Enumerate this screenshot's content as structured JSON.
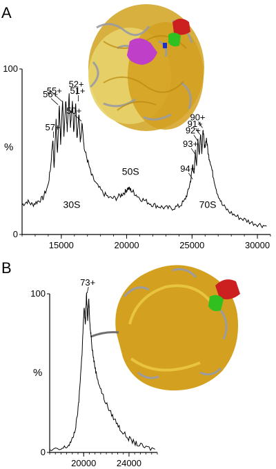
{
  "panel_labels": [
    "A",
    "B"
  ],
  "chart_data": [
    {
      "type": "line",
      "panel": "A",
      "ylabel": "%",
      "xlabel": "",
      "xlim": [
        12000,
        31000
      ],
      "ylim": [
        0,
        100
      ],
      "x_ticks": [
        15000,
        20000,
        25000,
        30000
      ],
      "y_ticks": [
        0,
        100
      ],
      "series": [
        {
          "points": [
            [
              12000,
              18
            ],
            [
              12400,
              20
            ],
            [
              12800,
              18
            ],
            [
              13200,
              20
            ],
            [
              13600,
              22
            ],
            [
              14000,
              30
            ],
            [
              14200,
              42
            ],
            [
              14350,
              58
            ],
            [
              14450,
              40
            ],
            [
              14600,
              70
            ],
            [
              14700,
              48
            ],
            [
              14850,
              78
            ],
            [
              14950,
              55
            ],
            [
              15100,
              80
            ],
            [
              15200,
              60
            ],
            [
              15350,
              82
            ],
            [
              15450,
              62
            ],
            [
              15600,
              84
            ],
            [
              15700,
              64
            ],
            [
              15850,
              82
            ],
            [
              15950,
              62
            ],
            [
              16100,
              80
            ],
            [
              16200,
              58
            ],
            [
              16350,
              74
            ],
            [
              16450,
              55
            ],
            [
              16600,
              68
            ],
            [
              16750,
              52
            ],
            [
              17000,
              45
            ],
            [
              17300,
              36
            ],
            [
              17700,
              30
            ],
            [
              18200,
              25
            ],
            [
              18700,
              22
            ],
            [
              19200,
              22
            ],
            [
              19600,
              24
            ],
            [
              19900,
              26
            ],
            [
              20100,
              28
            ],
            [
              20300,
              27
            ],
            [
              20600,
              25
            ],
            [
              21000,
              22
            ],
            [
              21500,
              20
            ],
            [
              22000,
              18
            ],
            [
              22500,
              17
            ],
            [
              23000,
              16
            ],
            [
              23500,
              16
            ],
            [
              24000,
              17
            ],
            [
              24400,
              20
            ],
            [
              24700,
              26
            ],
            [
              24900,
              33
            ],
            [
              25050,
              42
            ],
            [
              25150,
              36
            ],
            [
              25250,
              50
            ],
            [
              25350,
              42
            ],
            [
              25450,
              58
            ],
            [
              25550,
              48
            ],
            [
              25650,
              62
            ],
            [
              25750,
              50
            ],
            [
              25850,
              64
            ],
            [
              25950,
              52
            ],
            [
              26100,
              58
            ],
            [
              26250,
              48
            ],
            [
              26400,
              44
            ],
            [
              26600,
              36
            ],
            [
              26900,
              26
            ],
            [
              27300,
              18
            ],
            [
              27800,
              14
            ],
            [
              28400,
              11
            ],
            [
              29000,
              9
            ],
            [
              29600,
              7
            ],
            [
              30200,
              6
            ],
            [
              30700,
              5
            ]
          ]
        }
      ],
      "peak_labels": [
        {
          "text": "55+",
          "x": 15050,
          "y": 80
        },
        {
          "text": "52+",
          "x": 16200,
          "y": 84
        },
        {
          "text": "56+",
          "x": 14750,
          "y": 78
        },
        {
          "text": "51+",
          "x": 16300,
          "y": 80
        },
        {
          "text": "50+",
          "x": 16550,
          "y": 68
        },
        {
          "text": "57+",
          "x": 14400,
          "y": 58
        },
        {
          "text": "90+",
          "x": 25800,
          "y": 64
        },
        {
          "text": "91+",
          "x": 25600,
          "y": 60
        },
        {
          "text": "92+",
          "x": 25450,
          "y": 56
        },
        {
          "text": "93+",
          "x": 25250,
          "y": 48
        },
        {
          "text": "94+",
          "x": 25050,
          "y": 33
        }
      ],
      "region_labels": [
        {
          "text": "30S",
          "x": 15800,
          "y": 16
        },
        {
          "text": "50S",
          "x": 20300,
          "y": 36
        },
        {
          "text": "70S",
          "x": 26200,
          "y": 16
        }
      ]
    },
    {
      "type": "line",
      "panel": "B",
      "ylabel": "%",
      "xlabel": "",
      "xlim": [
        17000,
        26500
      ],
      "ylim": [
        0,
        100
      ],
      "x_ticks": [
        20000,
        24000
      ],
      "y_ticks": [
        0,
        100
      ],
      "series": [
        {
          "points": [
            [
              17000,
              1
            ],
            [
              18000,
              2
            ],
            [
              18600,
              4
            ],
            [
              19000,
              8
            ],
            [
              19300,
              16
            ],
            [
              19550,
              30
            ],
            [
              19700,
              46
            ],
            [
              19850,
              62
            ],
            [
              19950,
              78
            ],
            [
              20050,
              92
            ],
            [
              20150,
              80
            ],
            [
              20250,
              100
            ],
            [
              20350,
              84
            ],
            [
              20450,
              97
            ],
            [
              20550,
              80
            ],
            [
              20650,
              74
            ],
            [
              20750,
              66
            ],
            [
              20900,
              58
            ],
            [
              21100,
              50
            ],
            [
              21400,
              42
            ],
            [
              21800,
              34
            ],
            [
              22300,
              26
            ],
            [
              22800,
              20
            ],
            [
              23300,
              14
            ],
            [
              23800,
              10
            ],
            [
              24300,
              7
            ],
            [
              24800,
              5
            ],
            [
              25500,
              3
            ],
            [
              26300,
              2
            ]
          ]
        }
      ],
      "peak_labels": [
        {
          "text": "73+",
          "x": 20300,
          "y": 100
        }
      ],
      "region_labels": []
    }
  ],
  "structures": [
    {
      "name": "ribosome-70s",
      "colors": [
        "#e8d060",
        "#d8a020",
        "#a8aab0",
        "#d04090",
        "#d02020",
        "#30c020"
      ]
    },
    {
      "name": "ribosome-50s",
      "colors": [
        "#d8a020",
        "#e8c030",
        "#a8aab0",
        "#d02020",
        "#30c020"
      ]
    }
  ]
}
